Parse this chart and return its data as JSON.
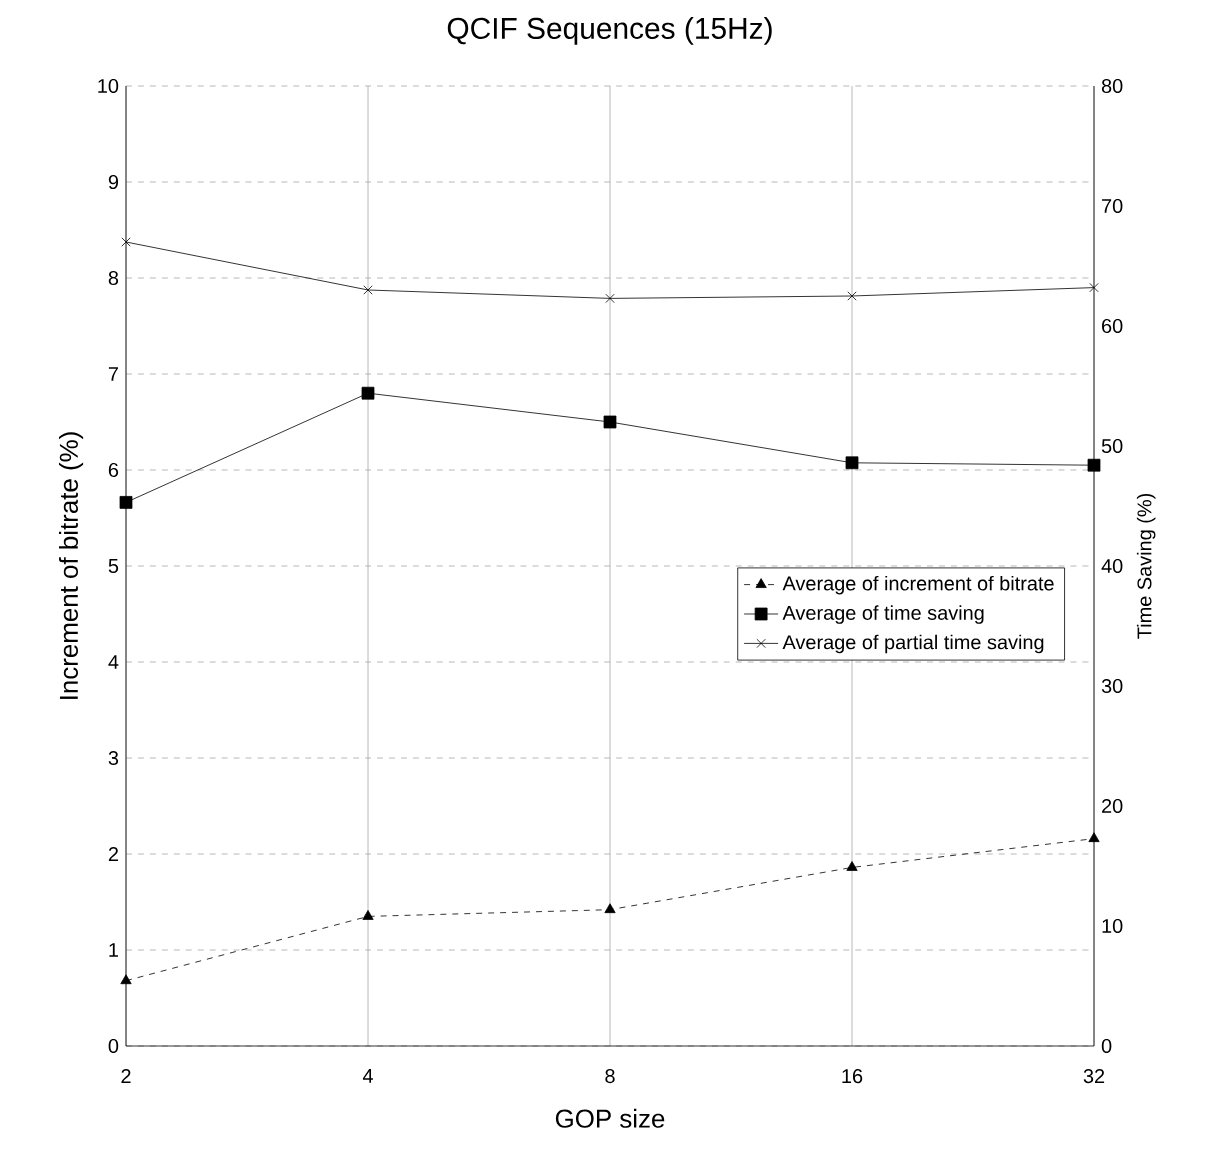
{
  "chart_data": {
    "type": "line",
    "title": "QCIF Sequences (15Hz)",
    "xlabel": "GOP size",
    "ylabel": "Increment of bitrate (%)",
    "y2label": "Time Saving (%)",
    "categories": [
      "2",
      "4",
      "8",
      "16",
      "32"
    ],
    "ylim": [
      0,
      10
    ],
    "yticks": [
      0,
      1,
      2,
      3,
      4,
      5,
      6,
      7,
      8,
      9,
      10
    ],
    "y2lim": [
      0,
      80
    ],
    "y2ticks": [
      0,
      10,
      20,
      30,
      40,
      50,
      60,
      70,
      80
    ],
    "grid": true,
    "legend": "right",
    "series": [
      {
        "name": "Average of increment of bitrate",
        "color": "#000000",
        "marker": "triangle",
        "line_style": "dashed",
        "values": [
          0.68,
          1.35,
          1.42,
          1.86,
          2.16
        ]
      },
      {
        "name": "Average of time saving",
        "color": "#000000",
        "marker": "square",
        "line_style": "solid",
        "axis": "y2",
        "values": [
          45.3,
          54.4,
          52.0,
          48.6,
          48.4
        ]
      },
      {
        "name": "Average of partial time saving",
        "color": "#000000",
        "marker": "cross",
        "line_style": "solid",
        "axis": "y2",
        "values": [
          67.0,
          63.0,
          62.3,
          62.5,
          63.2
        ]
      }
    ]
  }
}
